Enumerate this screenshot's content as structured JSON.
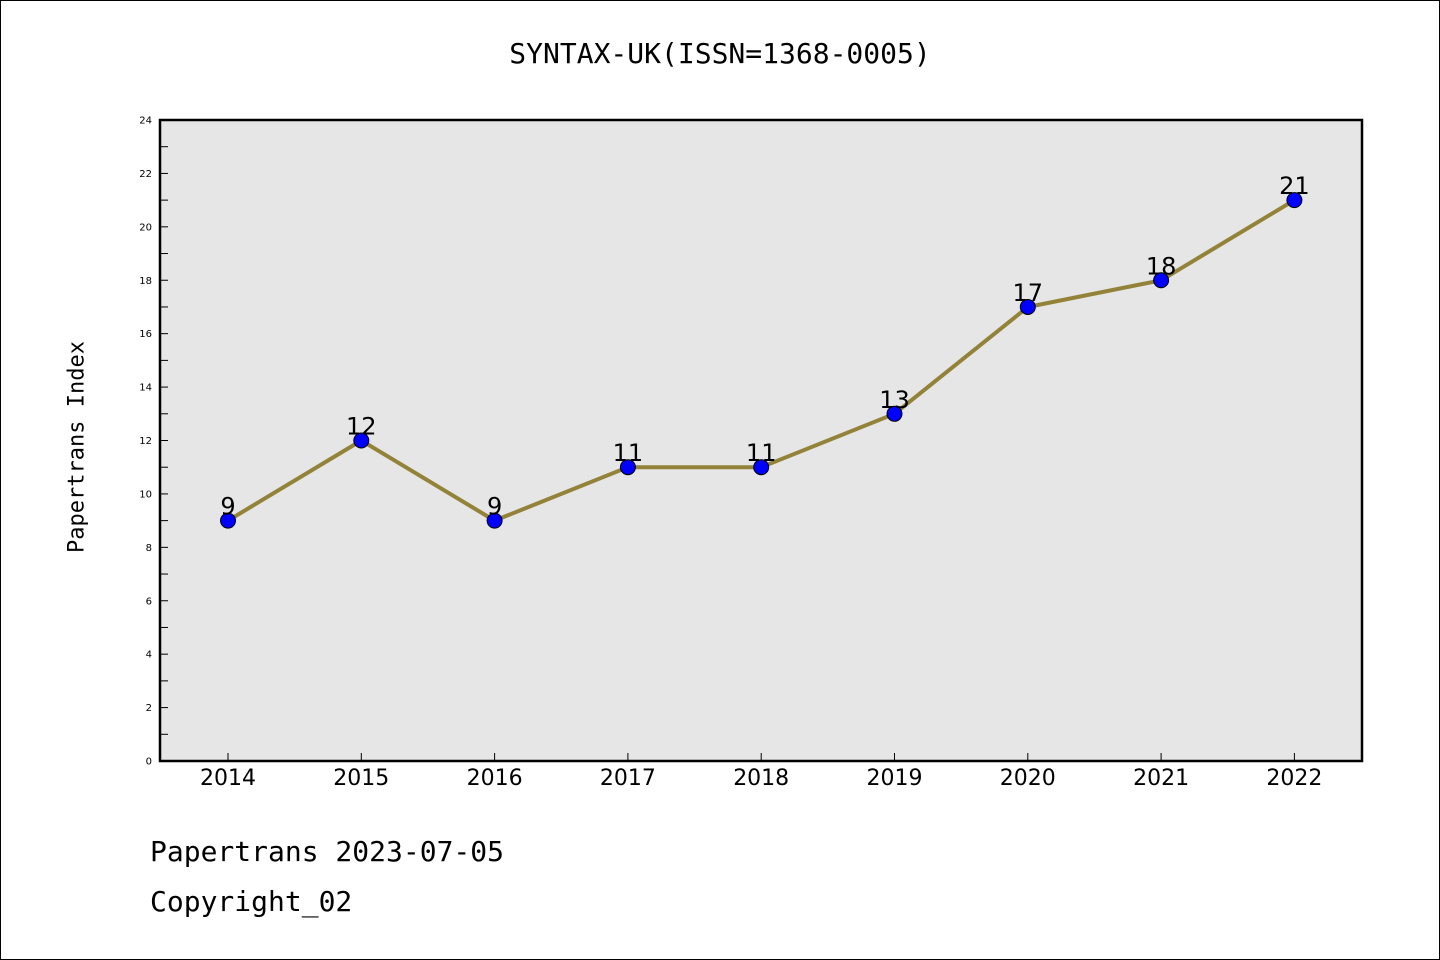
{
  "chart_data": {
    "type": "line",
    "title": "SYNTAX-UK(ISSN=1368-0005)",
    "xlabel": "",
    "ylabel": "Papertrans Index",
    "categories": [
      "2014",
      "2015",
      "2016",
      "2017",
      "2018",
      "2019",
      "2020",
      "2021",
      "2022"
    ],
    "series": [
      {
        "values": [
          9,
          12,
          9,
          11,
          11,
          13,
          17,
          18,
          21
        ],
        "line_color": "#938339",
        "marker_color": "#0000ff"
      }
    ],
    "data_labels": [
      "9",
      "12",
      "9",
      "11",
      "11",
      "13",
      "17",
      "18",
      "21"
    ],
    "ylim": [
      0,
      24
    ],
    "y_ticks": [
      "0",
      "2",
      "4",
      "6",
      "8",
      "10",
      "12",
      "14",
      "16",
      "18",
      "20",
      "22",
      "24"
    ],
    "grid": false,
    "plot_background": "#e6e6e6"
  },
  "footer": {
    "line1": "Papertrans 2023-07-05",
    "line2": "Copyright_02"
  }
}
